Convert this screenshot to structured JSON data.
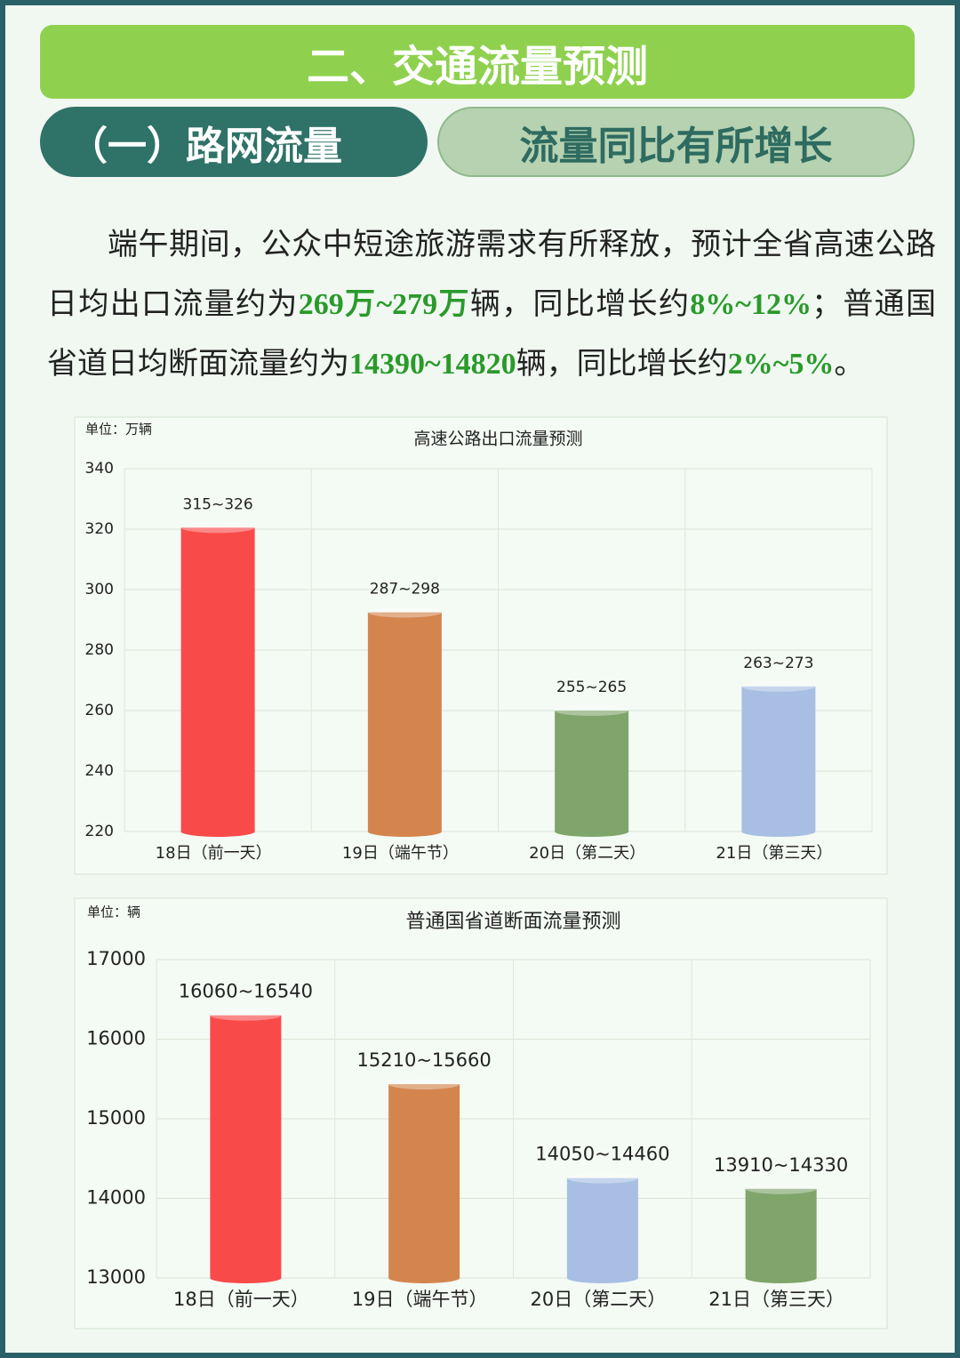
{
  "header": {
    "title": "二、交通流量预测",
    "section": "（一）路网流量",
    "subtitle": "流量同比有所增长"
  },
  "paragraph": [
    "端午期间，公众中短途旅游需求有所释放，预计全省高速公路日均出口流量约为",
    "269万~279万",
    "辆，同比增长约",
    "8%~12%",
    "；普通国省道日均断面流量约为",
    "14390~14820",
    "辆，同比增长约",
    "2%~5%",
    "。"
  ],
  "chart_data": [
    {
      "type": "bar",
      "title": "高速公路出口流量预测",
      "unit": "单位：万辆",
      "categories": [
        "18日（前一天）",
        "19日（端午节）",
        "20日（第二天）",
        "21日（第三天）"
      ],
      "values": [
        320.5,
        292.5,
        260,
        268
      ],
      "value_labels": [
        "315~326",
        "287~298",
        "255~265",
        "263~273"
      ],
      "colors": [
        "#f94a4a",
        "#d4854e",
        "#7fa56a",
        "#a8bfe3"
      ],
      "ylim": [
        220,
        340
      ],
      "yticks": [
        220,
        240,
        260,
        280,
        300,
        320,
        340
      ],
      "grid": true
    },
    {
      "type": "bar",
      "title": "普通国省道断面流量预测",
      "unit": "单位：辆",
      "categories": [
        "18日（前一天）",
        "19日（端午节）",
        "20日（第二天）",
        "21日（第三天）"
      ],
      "values": [
        16300,
        15435,
        14255,
        14120
      ],
      "value_labels": [
        "16060~16540",
        "15210~15660",
        "14050~14460",
        "13910~14330"
      ],
      "colors": [
        "#f94a4a",
        "#d4854e",
        "#a8bfe3",
        "#7fa56a"
      ],
      "ylim": [
        13000,
        17000
      ],
      "yticks": [
        13000,
        14000,
        15000,
        16000,
        17000
      ],
      "grid": true
    }
  ]
}
